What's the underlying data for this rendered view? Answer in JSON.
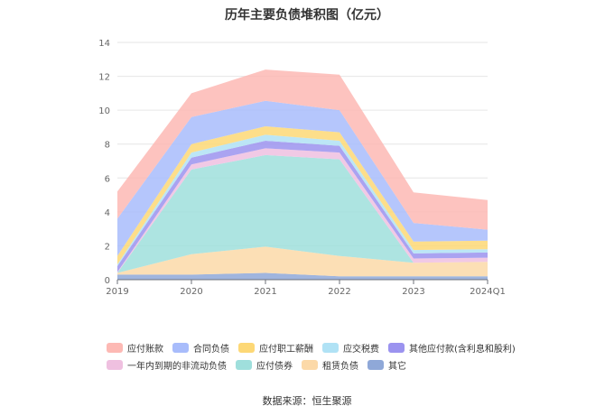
{
  "chart_data": {
    "type": "area",
    "stacked": true,
    "title": "历年主要负债堆积图（亿元）",
    "source": "数据来源：恒生聚源",
    "x": [
      "2019",
      "2020",
      "2021",
      "2022",
      "2023",
      "2024Q1"
    ],
    "ylim": [
      0,
      14
    ],
    "yticks": [
      "0",
      "2",
      "4",
      "6",
      "8",
      "10",
      "12",
      "14"
    ],
    "grid": true,
    "legend_position": "bottom",
    "series": [
      {
        "name": "其它",
        "color": "#8fa8d8",
        "values": [
          0.3,
          0.3,
          0.4,
          0.2,
          0.2,
          0.2
        ]
      },
      {
        "name": "租赁负债",
        "color": "#fcd9a8",
        "values": [
          0.1,
          1.2,
          1.55,
          1.2,
          0.8,
          0.85
        ]
      },
      {
        "name": "应付债券",
        "color": "#9fdfdc",
        "values": [
          0.0,
          5.0,
          5.4,
          5.7,
          0.0,
          0.0
        ]
      },
      {
        "name": "一年内到期的非流动负债",
        "color": "#efc0e0",
        "values": [
          0.05,
          0.3,
          0.4,
          0.4,
          0.25,
          0.25
        ]
      },
      {
        "name": "其他应付款(含利息和股利)",
        "color": "#9b93ef",
        "values": [
          0.35,
          0.4,
          0.45,
          0.4,
          0.3,
          0.3
        ]
      },
      {
        "name": "应交税费",
        "color": "#b0e2f5",
        "values": [
          0.1,
          0.3,
          0.35,
          0.3,
          0.2,
          0.2
        ]
      },
      {
        "name": "应付职工薪酬",
        "color": "#fdd876",
        "values": [
          0.5,
          0.5,
          0.5,
          0.5,
          0.5,
          0.5
        ]
      },
      {
        "name": "合同负债",
        "color": "#a8bcfb",
        "values": [
          2.2,
          1.6,
          1.5,
          1.3,
          1.1,
          0.65
        ]
      },
      {
        "name": "应付账款",
        "color": "#fdb9b4",
        "values": [
          1.6,
          1.4,
          1.85,
          2.1,
          1.8,
          1.75
        ]
      }
    ],
    "legend_order": [
      "应付账款",
      "合同负债",
      "应付职工薪酬",
      "应交税费",
      "其他应付款(含利息和股利)",
      "一年内到期的非流动负债",
      "应付债券",
      "租赁负债",
      "其它"
    ]
  }
}
